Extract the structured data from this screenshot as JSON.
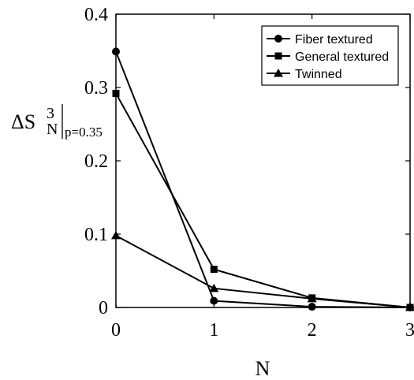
{
  "chart_data": {
    "type": "line",
    "x": [
      0,
      1,
      2,
      3
    ],
    "xlabel": "N",
    "ylabel": {
      "base": "ΔS",
      "superscript": "3",
      "subscript": "N",
      "condition": "p=0.35"
    },
    "xlim": [
      0,
      3
    ],
    "ylim": [
      0,
      0.4
    ],
    "xticks": [
      0,
      1,
      2,
      3
    ],
    "yticks": [
      0,
      0.1,
      0.2,
      0.3,
      0.4
    ],
    "xtick_labels": [
      "0",
      "1",
      "2",
      "3"
    ],
    "ytick_labels": [
      "0",
      "0.1",
      "0.2",
      "0.3",
      "0.4"
    ],
    "grid": false,
    "legend_position": "top-right",
    "series": [
      {
        "name": "Fiber textured",
        "marker": "circle",
        "values": [
          0.349,
          0.009,
          0.001,
          0.0
        ]
      },
      {
        "name": "General textured",
        "marker": "square",
        "values": [
          0.292,
          0.052,
          0.013,
          0.0
        ]
      },
      {
        "name": "Twinned",
        "marker": "triangle",
        "values": [
          0.098,
          0.026,
          0.012,
          0.0
        ]
      }
    ],
    "colors": {
      "line": "#000000",
      "background": "#ffffff"
    }
  }
}
